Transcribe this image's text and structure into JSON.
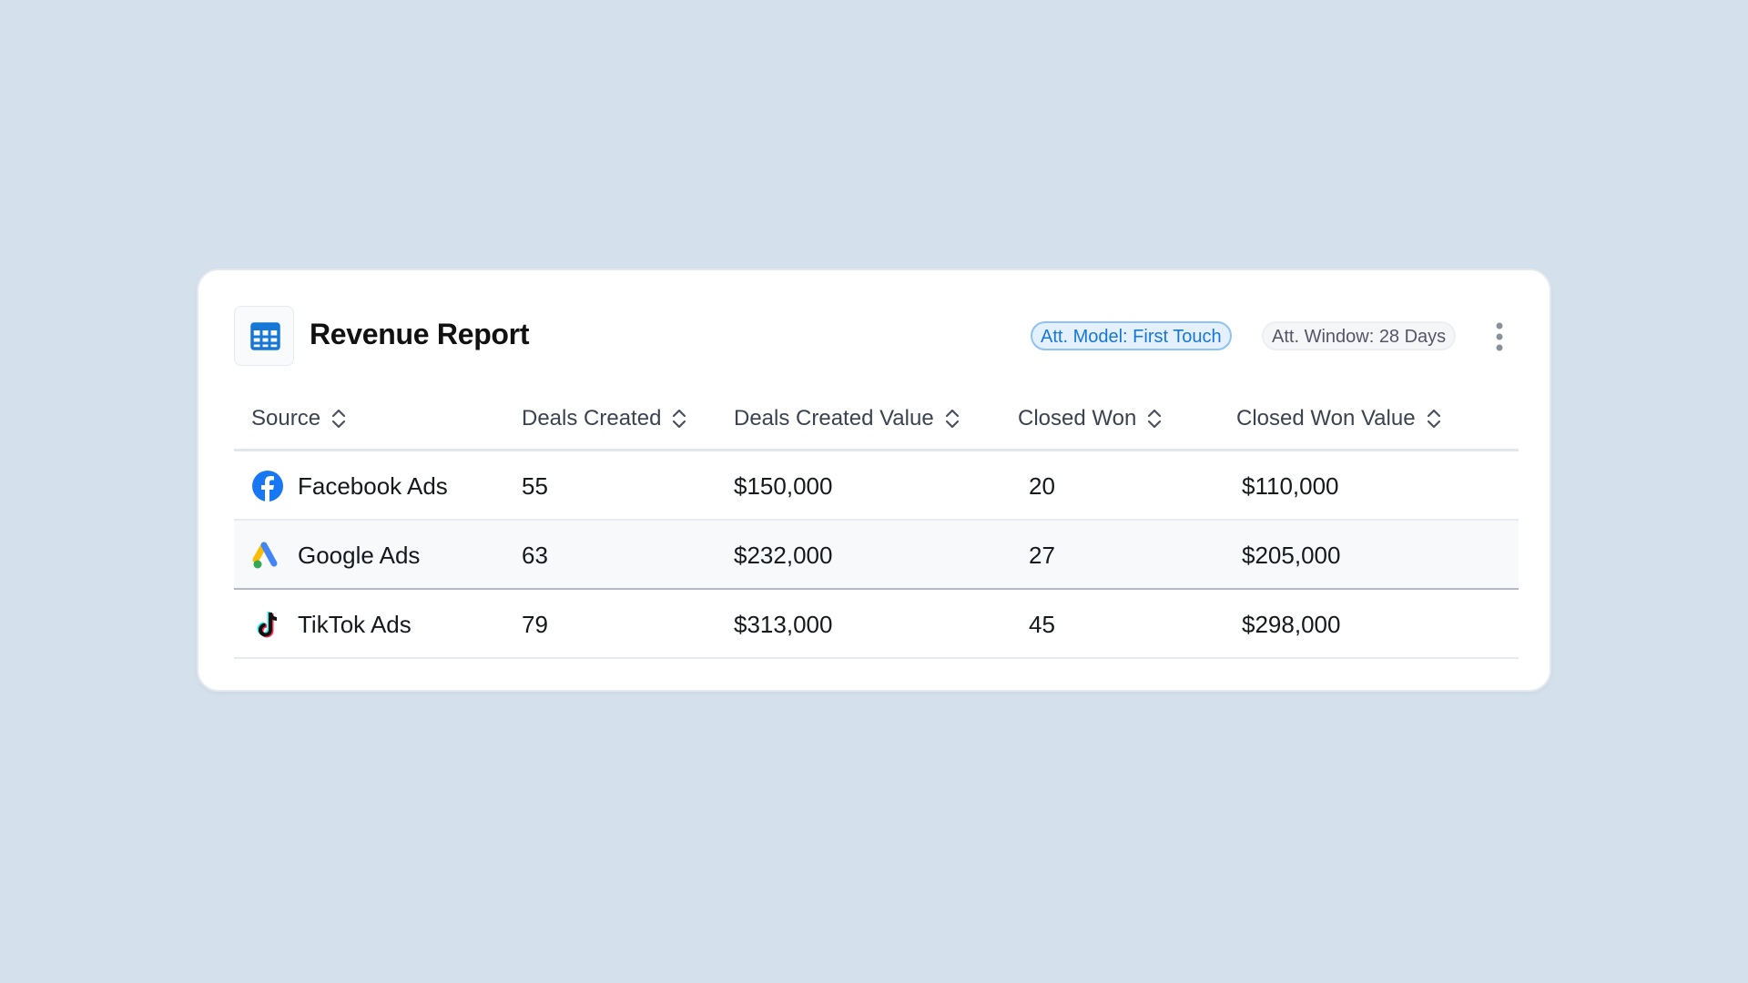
{
  "header": {
    "title": "Revenue Report",
    "badges": [
      "Att. Model: First Touch",
      "Att. Window: 28 Days"
    ]
  },
  "table": {
    "columns": [
      "Source",
      "Deals Created",
      "Deals Created Value",
      "Closed Won",
      "Closed Won Value"
    ],
    "rows": [
      [
        "Facebook Ads",
        "55",
        "$150,000",
        "20",
        "$110,000"
      ],
      [
        "Google Ads",
        "63",
        "$232,000",
        "27",
        "$205,000"
      ],
      [
        "TikTok Ads",
        "79",
        "$313,000",
        "45",
        "$298,000"
      ]
    ]
  }
}
